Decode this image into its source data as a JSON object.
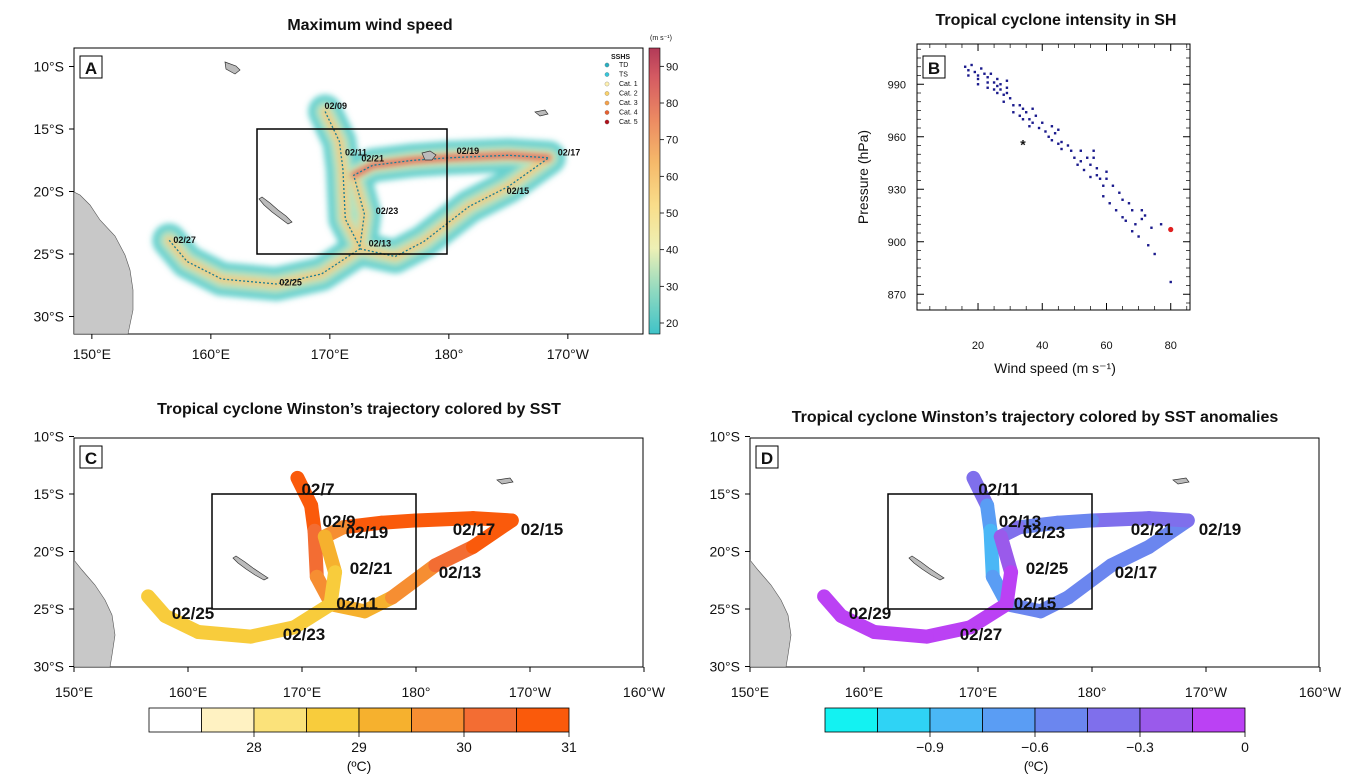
{
  "chart_data": [
    {
      "panel": "A",
      "type": "heatmap",
      "title": "Maximum wind speed",
      "lat_ticks": [
        "10°S",
        "15°S",
        "20°S",
        "25°S",
        "30°S"
      ],
      "lon_ticks": [
        "150°E",
        "160°E",
        "170°E",
        "180°",
        "170°W"
      ],
      "colorbar": {
        "unit": "(m s⁻¹)",
        "ticks": [
          20,
          30,
          40,
          50,
          60,
          70,
          80,
          90
        ],
        "range": [
          17,
          95
        ]
      },
      "legend_title": "SSHS",
      "legend": [
        {
          "name": "TD",
          "color": "#2aaec0"
        },
        {
          "name": "TS",
          "color": "#36c6da"
        },
        {
          "name": "Cat. 1",
          "color": "#fff1b0"
        },
        {
          "name": "Cat. 2",
          "color": "#fbd26b"
        },
        {
          "name": "Cat. 3",
          "color": "#f6a24a"
        },
        {
          "name": "Cat. 4",
          "color": "#e8602e"
        },
        {
          "name": "Cat. 5",
          "color": "#b0101a"
        }
      ],
      "track_labels": [
        "02/09",
        "02/11",
        "02/21",
        "02/19",
        "02/17",
        "02/15",
        "02/23",
        "02/13",
        "02/27",
        "02/25"
      ],
      "track": [
        [
          -13.6,
          169.6
        ],
        [
          -16.0,
          170.8
        ],
        [
          -18.2,
          171.1
        ],
        [
          -22.2,
          171.3
        ],
        [
          -24.6,
          172.6
        ],
        [
          -25.2,
          175.5
        ],
        [
          -24.0,
          177.9
        ],
        [
          -21.2,
          181.7
        ],
        [
          -19.6,
          185.0
        ],
        [
          -17.3,
          188.4
        ],
        [
          -17.1,
          185.0
        ],
        [
          -17.3,
          180.0
        ],
        [
          -17.5,
          177.0
        ],
        [
          -17.9,
          173.6
        ],
        [
          -18.7,
          172.0
        ],
        [
          -21.8,
          172.9
        ],
        [
          -24.6,
          172.5
        ],
        [
          -26.6,
          169.3
        ],
        [
          -27.4,
          165.5
        ],
        [
          -27.0,
          160.9
        ],
        [
          -25.6,
          158.0
        ],
        [
          -23.9,
          156.5
        ]
      ]
    },
    {
      "panel": "B",
      "type": "scatter",
      "title": "Tropical cyclone intensity in SH",
      "xlabel": "Wind speed (m s⁻¹)",
      "ylabel": "Pressure (hPa)",
      "xlim": [
        1,
        86
      ],
      "ylim": [
        861,
        1013
      ],
      "xticks": [
        20,
        40,
        60,
        80
      ],
      "yticks": [
        870,
        900,
        930,
        960,
        990
      ],
      "series": [
        {
          "color": "#1a1a8c",
          "points": [
            [
              16,
              1000
            ],
            [
              17,
              998
            ],
            [
              17,
              995
            ],
            [
              18,
              1001
            ],
            [
              19,
              997
            ],
            [
              20,
              995
            ],
            [
              20,
              990
            ],
            [
              20,
              993
            ],
            [
              21,
              999
            ],
            [
              22,
              996
            ],
            [
              23,
              994
            ],
            [
              23,
              991
            ],
            [
              23,
              988
            ],
            [
              24,
              996
            ],
            [
              25,
              991
            ],
            [
              25,
              987
            ],
            [
              26,
              993
            ],
            [
              26,
              989
            ],
            [
              26,
              985
            ],
            [
              27,
              990
            ],
            [
              27,
              987
            ],
            [
              28,
              984
            ],
            [
              28,
              980
            ],
            [
              29,
              992
            ],
            [
              29,
              988
            ],
            [
              29,
              985
            ],
            [
              30,
              982
            ],
            [
              31,
              978
            ],
            [
              31,
              974
            ],
            [
              33,
              978
            ],
            [
              33,
              972
            ],
            [
              34,
              976
            ],
            [
              34,
              970
            ],
            [
              35,
              974
            ],
            [
              36,
              970
            ],
            [
              36,
              966
            ],
            [
              37,
              976
            ],
            [
              37,
              968
            ],
            [
              38,
              972
            ],
            [
              39,
              965
            ],
            [
              40,
              968
            ],
            [
              41,
              963
            ],
            [
              42,
              960
            ],
            [
              43,
              966
            ],
            [
              43,
              958
            ],
            [
              44,
              962
            ],
            [
              45,
              956
            ],
            [
              45,
              964
            ],
            [
              46,
              957
            ],
            [
              46,
              953
            ],
            [
              48,
              955
            ],
            [
              49,
              952
            ],
            [
              50,
              948
            ],
            [
              51,
              944
            ],
            [
              52,
              952
            ],
            [
              52,
              946
            ],
            [
              53,
              941
            ],
            [
              54,
              948
            ],
            [
              55,
              944
            ],
            [
              55,
              937
            ],
            [
              56,
              952
            ],
            [
              56,
              948
            ],
            [
              57,
              942
            ],
            [
              57,
              938
            ],
            [
              58,
              936
            ],
            [
              59,
              932
            ],
            [
              59,
              926
            ],
            [
              60,
              940
            ],
            [
              60,
              936
            ],
            [
              61,
              922
            ],
            [
              62,
              932
            ],
            [
              63,
              918
            ],
            [
              64,
              928
            ],
            [
              65,
              924
            ],
            [
              65,
              914
            ],
            [
              66,
              912
            ],
            [
              67,
              922
            ],
            [
              68,
              918
            ],
            [
              68,
              906
            ],
            [
              69,
              910
            ],
            [
              70,
              903
            ],
            [
              71,
              918
            ],
            [
              71,
              913
            ],
            [
              72,
              915
            ],
            [
              73,
              898
            ],
            [
              74,
              908
            ],
            [
              75,
              893
            ],
            [
              77,
              910
            ],
            [
              80,
              877
            ]
          ]
        },
        {
          "color": "#e02020",
          "marker": "star",
          "points": [
            [
              34,
              955
            ]
          ]
        },
        {
          "color": "#e02020",
          "marker": "circle",
          "points": [
            [
              80,
              907
            ]
          ]
        }
      ]
    },
    {
      "panel": "C",
      "type": "line",
      "title": "Tropical cyclone Winston’s trajectory colored by SST",
      "lat_ticks": [
        "10°S",
        "15°S",
        "20°S",
        "25°S",
        "30°S"
      ],
      "lon_ticks": [
        "150°E",
        "160°E",
        "170°E",
        "180°",
        "170°W",
        "160°W"
      ],
      "colorbar": {
        "unit": "(ºC)",
        "ticks": [
          "28",
          "29",
          "30",
          "31"
        ]
      },
      "track_labels": [
        "02/7",
        "02/9",
        "02/19",
        "02/17",
        "02/15",
        "02/21",
        "02/13",
        "02/11",
        "02/25",
        "02/23"
      ],
      "track": [
        {
          "lat": -13.6,
          "lon": 169.6,
          "sst": 31.2
        },
        {
          "lat": -16.0,
          "lon": 170.8,
          "sst": 31.2
        },
        {
          "lat": -18.2,
          "lon": 171.1,
          "sst": 30.8
        },
        {
          "lat": -22.2,
          "lon": 171.3,
          "sst": 30.9
        },
        {
          "lat": -24.6,
          "lon": 172.6,
          "sst": 29.7
        },
        {
          "lat": -25.2,
          "lon": 175.5,
          "sst": 29.7
        },
        {
          "lat": -24.0,
          "lon": 177.9,
          "sst": 29.8
        },
        {
          "lat": -21.2,
          "lon": 181.7,
          "sst": 30.6
        },
        {
          "lat": -19.6,
          "lon": 185.0,
          "sst": 30.9
        },
        {
          "lat": -17.3,
          "lon": 188.4,
          "sst": 31.4
        },
        {
          "lat": -17.1,
          "lon": 185.0,
          "sst": 31.3
        },
        {
          "lat": -17.3,
          "lon": 180.0,
          "sst": 31.2
        },
        {
          "lat": -17.5,
          "lon": 177.0,
          "sst": 31.2
        },
        {
          "lat": -17.9,
          "lon": 173.6,
          "sst": 30.9
        },
        {
          "lat": -18.7,
          "lon": 172.0,
          "sst": 29.8
        },
        {
          "lat": -21.8,
          "lon": 172.9,
          "sst": 29.4
        },
        {
          "lat": -24.6,
          "lon": 172.5,
          "sst": 29.3
        },
        {
          "lat": -26.6,
          "lon": 169.3,
          "sst": 29.1
        },
        {
          "lat": -27.4,
          "lon": 165.5,
          "sst": 29.0
        },
        {
          "lat": -27.0,
          "lon": 160.9,
          "sst": 29.0
        },
        {
          "lat": -25.6,
          "lon": 158.0,
          "sst": 29.1
        },
        {
          "lat": -23.9,
          "lon": 156.5,
          "sst": 29.3
        }
      ]
    },
    {
      "panel": "D",
      "type": "line",
      "title": "Tropical cyclone Winston’s trajectory colored by SST anomalies",
      "lat_ticks": [
        "10°S",
        "15°S",
        "20°S",
        "25°S",
        "30°S"
      ],
      "lon_ticks": [
        "150°E",
        "160°E",
        "170°E",
        "180°",
        "170°W",
        "160°W"
      ],
      "colorbar": {
        "unit": "(ºC)",
        "ticks": [
          "−0.9",
          "−0.6",
          "−0.3",
          "0"
        ]
      },
      "track_labels": [
        "02/11",
        "02/13",
        "02/23",
        "02/21",
        "02/19",
        "02/25",
        "02/17",
        "02/15",
        "02/29",
        "02/27"
      ],
      "track": [
        {
          "lat": -13.6,
          "lon": 169.6,
          "ssta": -0.2
        },
        {
          "lat": -16.0,
          "lon": 170.8,
          "ssta": -0.3
        },
        {
          "lat": -18.2,
          "lon": 171.1,
          "ssta": -0.8
        },
        {
          "lat": -22.2,
          "lon": 171.3,
          "ssta": -0.7
        },
        {
          "lat": -24.6,
          "lon": 172.6,
          "ssta": -0.5
        },
        {
          "lat": -25.2,
          "lon": 175.5,
          "ssta": -0.5
        },
        {
          "lat": -24.0,
          "lon": 177.9,
          "ssta": -0.5
        },
        {
          "lat": -21.2,
          "lon": 181.7,
          "ssta": -0.4
        },
        {
          "lat": -19.6,
          "lon": 185.0,
          "ssta": -0.4
        },
        {
          "lat": -17.3,
          "lon": 188.4,
          "ssta": -0.3
        },
        {
          "lat": -17.1,
          "lon": 185.0,
          "ssta": -0.3
        },
        {
          "lat": -17.3,
          "lon": 180.0,
          "ssta": -0.3
        },
        {
          "lat": -17.5,
          "lon": 177.0,
          "ssta": -0.7
        },
        {
          "lat": -17.9,
          "lon": 173.6,
          "ssta": -0.2
        },
        {
          "lat": -18.7,
          "lon": 172.0,
          "ssta": -0.1
        },
        {
          "lat": -21.8,
          "lon": 172.9,
          "ssta": 0.0
        },
        {
          "lat": -24.6,
          "lon": 172.5,
          "ssta": 0.05
        },
        {
          "lat": -26.6,
          "lon": 169.3,
          "ssta": 0.1
        },
        {
          "lat": -27.4,
          "lon": 165.5,
          "ssta": 0.15
        },
        {
          "lat": -27.0,
          "lon": 160.9,
          "ssta": 0.15
        },
        {
          "lat": -25.6,
          "lon": 158.0,
          "ssta": 0.1
        },
        {
          "lat": -23.9,
          "lon": 156.5,
          "ssta": 0.05
        }
      ]
    }
  ],
  "panels": {
    "a": {
      "letter": "A",
      "title": "Maximum wind speed",
      "unit": "(m s⁻¹)",
      "legend_title": "SSHS"
    },
    "b": {
      "letter": "B",
      "title": "Tropical cyclone intensity in SH",
      "xlabel": "Wind speed (m s⁻¹)",
      "ylabel": "Pressure (hPa)"
    },
    "c": {
      "letter": "C",
      "title": "Tropical cyclone Winston’s trajectory colored by SST",
      "unit": "(ºC)"
    },
    "d": {
      "letter": "D",
      "title": "Tropical cyclone Winston’s trajectory colored by SST anomalies",
      "unit": "(ºC)"
    }
  },
  "colors": {
    "land": "#c8c8c8",
    "box": "#000000",
    "sst_scale": [
      "#ffffff",
      "#fff2c2",
      "#fbe27a",
      "#f8cc3c",
      "#f6b12e",
      "#f68e32",
      "#f36d33",
      "#fa5a0b"
    ],
    "ssta_scale": [
      "#13f2f2",
      "#2fd3f5",
      "#4ab7f6",
      "#5a9df4",
      "#6b86ef",
      "#7f6fec",
      "#9a5aeb",
      "#bb41f4"
    ]
  }
}
